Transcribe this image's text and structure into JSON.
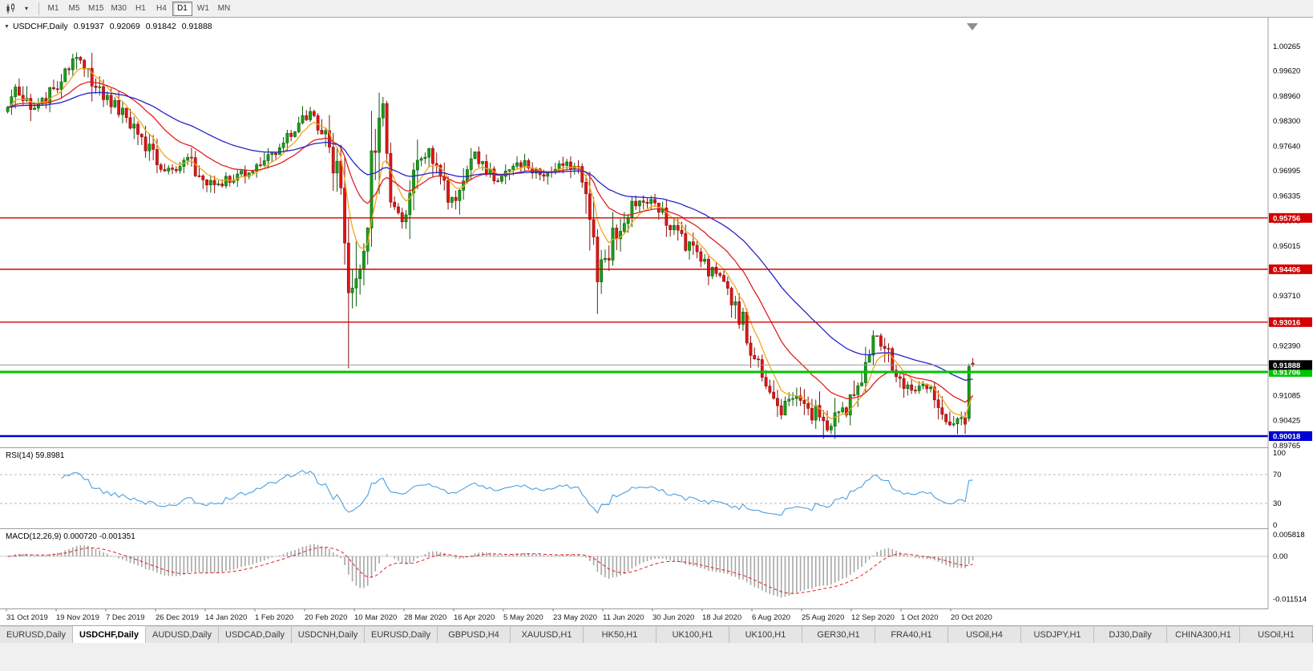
{
  "toolbar": {
    "timeframes": [
      {
        "label": "M1",
        "active": false
      },
      {
        "label": "M5",
        "active": false
      },
      {
        "label": "M15",
        "active": false
      },
      {
        "label": "M30",
        "active": false
      },
      {
        "label": "H1",
        "active": false
      },
      {
        "label": "H4",
        "active": false
      },
      {
        "label": "D1",
        "active": true
      },
      {
        "label": "W1",
        "active": false
      },
      {
        "label": "MN",
        "active": false
      }
    ]
  },
  "chart": {
    "title": "USDCHF,Daily",
    "ohlc": {
      "open": "0.91937",
      "high": "0.92069",
      "low": "0.91842",
      "close": "0.91888"
    },
    "price_axis_labels": [
      "1.00265",
      "0.99620",
      "0.98960",
      "0.98300",
      "0.97640",
      "0.96995",
      "0.96335",
      "0.95675",
      "0.95015",
      "0.94355",
      "0.93710",
      "0.93050",
      "0.92390",
      "0.91730",
      "0.91085",
      "0.90425",
      "0.89765"
    ],
    "levels": [
      {
        "label": "0.95756",
        "value": 0.95756,
        "color": "#d40000",
        "width": 1.4
      },
      {
        "label": "0.94406",
        "value": 0.94406,
        "color": "#d40000",
        "width": 1.4
      },
      {
        "label": "0.93016",
        "value": 0.93016,
        "color": "#d40000",
        "width": 1.4
      },
      {
        "label": "0.91706",
        "value": 0.91706,
        "color": "#00c400",
        "width": 3
      },
      {
        "label": "0.90018",
        "value": 0.90018,
        "color": "#0000d4",
        "width": 2.6
      }
    ],
    "current_price": {
      "label": "0.91888",
      "value": 0.91888
    },
    "date_labels": [
      "31 Oct 2019",
      "19 Nov 2019",
      "7 Dec 2019",
      "26 Dec 2019",
      "14 Jan 2020",
      "1 Feb 2020",
      "20 Feb 2020",
      "10 Mar 2020",
      "28 Mar 2020",
      "16 Apr 2020",
      "5 May 2020",
      "23 May 2020",
      "11 Jun 2020",
      "30 Jun 2020",
      "18 Jul 2020",
      "6 Aug 2020",
      "25 Aug 2020",
      "12 Sep 2020",
      "1 Oct 2020",
      "20 Oct 2020"
    ],
    "colors": {
      "up": "#17a017",
      "up_stroke": "#0a5c0a",
      "down": "#e01616",
      "down_stroke": "#8c0c0c",
      "ma_fast": "#f2a71b",
      "ma_mid": "#e02020",
      "ma_slow": "#2424c8",
      "current_line": "#9a9a9a",
      "current_tag": "#000000"
    },
    "series": {
      "type": "candlestick",
      "count": 253,
      "anchors": [
        [
          0,
          0.9865
        ],
        [
          3,
          0.9915
        ],
        [
          6,
          0.987
        ],
        [
          10,
          0.988
        ],
        [
          14,
          0.994
        ],
        [
          19,
          1.0005
        ],
        [
          21,
          0.9975
        ],
        [
          24,
          0.9905
        ],
        [
          28,
          0.987
        ],
        [
          32,
          0.9825
        ],
        [
          36,
          0.9765
        ],
        [
          40,
          0.971
        ],
        [
          44,
          0.97
        ],
        [
          47,
          0.9725
        ],
        [
          50,
          0.969
        ],
        [
          54,
          0.9655
        ],
        [
          58,
          0.968
        ],
        [
          62,
          0.97
        ],
        [
          66,
          0.972
        ],
        [
          70,
          0.9755
        ],
        [
          74,
          0.98
        ],
        [
          78,
          0.9845
        ],
        [
          80,
          0.985
        ],
        [
          83,
          0.979
        ],
        [
          86,
          0.97
        ],
        [
          88,
          0.9575
        ],
        [
          89,
          0.939
        ],
        [
          90,
          0.933
        ],
        [
          91,
          0.941
        ],
        [
          93,
          0.952
        ],
        [
          95,
          0.97
        ],
        [
          97,
          0.988
        ],
        [
          99,
          0.975
        ],
        [
          101,
          0.96
        ],
        [
          103,
          0.9575
        ],
        [
          105,
          0.962
        ],
        [
          107,
          0.97
        ],
        [
          110,
          0.9745
        ],
        [
          113,
          0.9685
        ],
        [
          116,
          0.9625
        ],
        [
          119,
          0.969
        ],
        [
          122,
          0.973
        ],
        [
          125,
          0.97
        ],
        [
          128,
          0.968
        ],
        [
          131,
          0.971
        ],
        [
          134,
          0.972
        ],
        [
          137,
          0.97
        ],
        [
          140,
          0.969
        ],
        [
          143,
          0.971
        ],
        [
          146,
          0.973
        ],
        [
          149,
          0.97
        ],
        [
          151,
          0.963
        ],
        [
          153,
          0.95
        ],
        [
          154,
          0.944
        ],
        [
          156,
          0.947
        ],
        [
          158,
          0.952
        ],
        [
          160,
          0.9555
        ],
        [
          163,
          0.96
        ],
        [
          166,
          0.962
        ],
        [
          169,
          0.9615
        ],
        [
          172,
          0.957
        ],
        [
          175,
          0.953
        ],
        [
          178,
          0.95
        ],
        [
          181,
          0.9465
        ],
        [
          184,
          0.943
        ],
        [
          187,
          0.941
        ],
        [
          190,
          0.935
        ],
        [
          193,
          0.927
        ],
        [
          196,
          0.919
        ],
        [
          199,
          0.913
        ],
        [
          202,
          0.908
        ],
        [
          205,
          0.911
        ],
        [
          207,
          0.9085
        ],
        [
          209,
          0.905
        ],
        [
          211,
          0.9075
        ],
        [
          213,
          0.901
        ],
        [
          215,
          0.904
        ],
        [
          217,
          0.9085
        ],
        [
          219,
          0.906
        ],
        [
          221,
          0.9105
        ],
        [
          223,
          0.916
        ],
        [
          225,
          0.9235
        ],
        [
          226,
          0.9265
        ],
        [
          228,
          0.9245
        ],
        [
          230,
          0.9205
        ],
        [
          232,
          0.917
        ],
        [
          234,
          0.914
        ],
        [
          236,
          0.9125
        ],
        [
          238,
          0.915
        ],
        [
          240,
          0.9135
        ],
        [
          242,
          0.9105
        ],
        [
          244,
          0.9065
        ],
        [
          246,
          0.904
        ],
        [
          248,
          0.9065
        ],
        [
          250,
          0.9045
        ],
        [
          251,
          0.9185
        ],
        [
          252,
          0.91888
        ]
      ],
      "overrides": {
        "89": {
          "low": 0.918
        },
        "97": {
          "high": 0.9905
        },
        "105": {
          "low": 0.952
        },
        "213": {
          "low": 0.8995
        },
        "226": {
          "high": 0.928
        },
        "251": {
          "open": 0.9048,
          "high": 0.9192,
          "low": 0.904,
          "close": 0.9185
        },
        "252": {
          "open": 0.91937,
          "high": 0.92069,
          "low": 0.91842,
          "close": 0.91888
        }
      },
      "moving_averages": [
        {
          "period": 7,
          "color_key": "ma_fast"
        },
        {
          "period": 21,
          "color_key": "ma_mid"
        },
        {
          "period": 50,
          "color_key": "ma_slow"
        }
      ]
    }
  },
  "rsi": {
    "label": "RSI(14) 59.8981",
    "period": 14,
    "value": 59.8981,
    "axis_labels": [
      "100",
      "70",
      "30",
      "0"
    ],
    "upper_level": 70,
    "lower_level": 30,
    "line_color": "#4aa0e0"
  },
  "macd": {
    "label": "MACD(12,26,9) 0.000720 -0.001351",
    "fast": 12,
    "slow": 26,
    "signal": 9,
    "main_value": "0.000720",
    "signal_value": "-0.001351",
    "axis_labels": [
      {
        "text": "0.005818",
        "value": 0.005818
      },
      {
        "text": "0.00",
        "value": 0
      },
      {
        "text": "-0.011514",
        "value": -0.011514
      }
    ],
    "histogram_color": "#a6a6a6",
    "signal_color": "#e02020"
  },
  "tabs": [
    {
      "label": "EURUSD,Daily",
      "active": false
    },
    {
      "label": "USDCHF,Daily",
      "active": true
    },
    {
      "label": "AUDUSD,Daily",
      "active": false
    },
    {
      "label": "USDCAD,Daily",
      "active": false
    },
    {
      "label": "USDCNH,Daily",
      "active": false
    },
    {
      "label": "EURUSD,Daily",
      "active": false
    },
    {
      "label": "GBPUSD,H4",
      "active": false
    },
    {
      "label": "XAUUSD,H1",
      "active": false
    },
    {
      "label": "HK50,H1",
      "active": false
    },
    {
      "label": "UK100,H1",
      "active": false
    },
    {
      "label": "UK100,H1",
      "active": false
    },
    {
      "label": "GER30,H1",
      "active": false
    },
    {
      "label": "FRA40,H1",
      "active": false
    },
    {
      "label": "USOil,H4",
      "active": false
    },
    {
      "label": "USDJPY,H1",
      "active": false
    },
    {
      "label": "DJ30,Daily",
      "active": false
    },
    {
      "label": "CHINA300,H1",
      "active": false
    },
    {
      "label": "USOil,H1",
      "active": false
    }
  ]
}
